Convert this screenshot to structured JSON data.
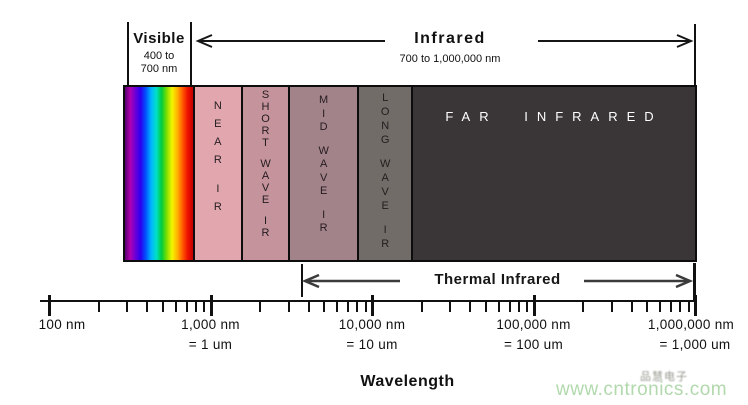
{
  "header": {
    "visible": {
      "title": "Visible",
      "range_line1": "400 to",
      "range_line2": "700 nm"
    },
    "infrared": {
      "title": "Infrared",
      "range": "700 to 1,000,000 nm"
    }
  },
  "bands": [
    {
      "id": "visible-spectrum",
      "label": "",
      "type": "rainbow",
      "gradient": [
        "#5a0070",
        "#b000b0",
        "#6a00d8",
        "#2a00f0",
        "#0055ff",
        "#00b4ff",
        "#00e0c8",
        "#00cc3c",
        "#7ee000",
        "#f4f400",
        "#ffb400",
        "#ff5a00",
        "#ee1000",
        "#c00000"
      ]
    },
    {
      "id": "near-ir",
      "label": "NEAR IR",
      "color": "#e2a7ae"
    },
    {
      "id": "short-wave-ir",
      "label": "SHORT WAVE IR",
      "color": "#c4939b"
    },
    {
      "id": "mid-wave-ir",
      "label": "MID WAVE IR",
      "color": "#a3838a"
    },
    {
      "id": "long-wave-ir",
      "label": "LONG WAVE IR",
      "color": "#716c67"
    },
    {
      "id": "far-infrared",
      "label": "FAR INFRARED",
      "color": "#3a3638",
      "text_color": "#ffffff"
    }
  ],
  "thermal": {
    "label": "Thermal Infrared"
  },
  "scale": {
    "type": "logarithmic",
    "major_tick_labels_nm": [
      "100 nm",
      "1,000 nm",
      "10,000 nm",
      "100,000 nm",
      "1,000,000 nm"
    ],
    "major_tick_labels_um": [
      "",
      "= 1 um",
      "= 10 um",
      "= 100 um",
      "= 1,000 um"
    ],
    "major_tick_values_nm": [
      100,
      1000,
      10000,
      100000,
      1000000
    ]
  },
  "footer": {
    "axis_title": "Wavelength"
  },
  "watermark": {
    "cn_text": "品慧电子",
    "site": "www.cntronics.com",
    "site_color": "#b2d9ad"
  },
  "colors": {
    "band_border": "#0d0d0d",
    "near_ir": "#e2a7ae",
    "short_wave_ir": "#c4939b",
    "mid_wave_ir": "#a3838a",
    "long_wave_ir": "#716c67",
    "far_infrared": "#3a3638"
  }
}
